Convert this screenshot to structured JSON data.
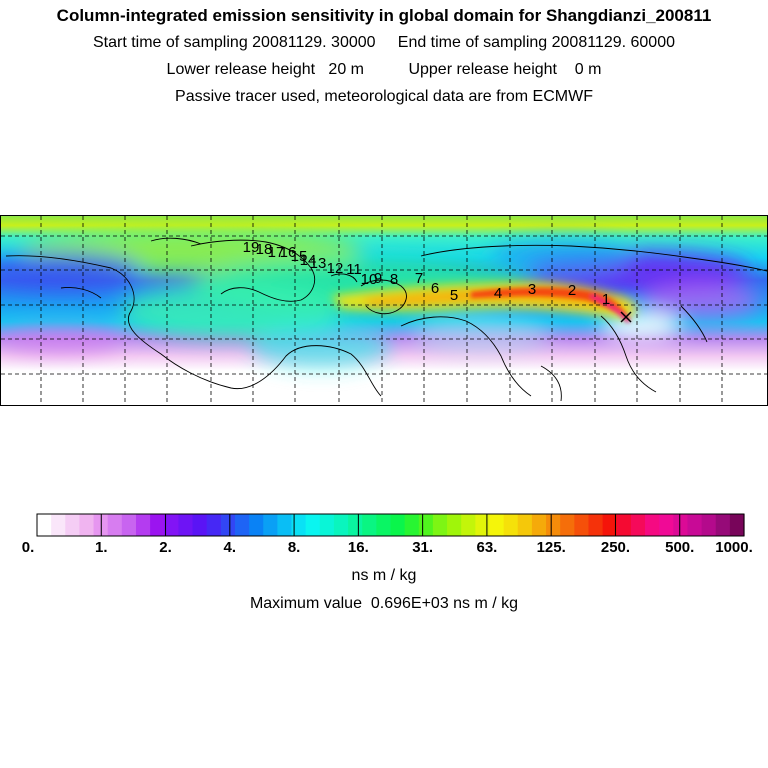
{
  "header": {
    "title": "Column-integrated emission sensitivity in global domain for Shangdianzi_200811",
    "sampling_line": "Start time of sampling 20081129. 30000     End time of sampling 20081129. 60000",
    "release_line": "Lower release height   20 m          Upper release height    0 m",
    "tracer_line": "Passive tracer used, meteorological data are from ECMWF"
  },
  "map": {
    "day_labels": [
      "1",
      "2",
      "3",
      "4",
      "5",
      "6",
      "7",
      "8",
      "9",
      "10",
      "11",
      "12",
      "13",
      "14",
      "15",
      "16",
      "17",
      "18",
      "19"
    ],
    "station_marker": "x-icon"
  },
  "colorbar": {
    "colors": [
      "#ffffff",
      "#fae6fa",
      "#f5cdf5",
      "#f0b4f0",
      "#e696f0",
      "#d77df0",
      "#c864f0",
      "#b43cf0",
      "#9b14f0",
      "#8214f5",
      "#6e14f5",
      "#5a14f5",
      "#4628f5",
      "#3246f5",
      "#1e64f5",
      "#0a82f5",
      "#0aa0f5",
      "#0abef5",
      "#0ae1f5",
      "#0af5f0",
      "#0af5d7",
      "#0af5be",
      "#0af5a0",
      "#0af582",
      "#0af564",
      "#0af54b",
      "#28f532",
      "#50f51e",
      "#7df514",
      "#a0f50a",
      "#c3f50a",
      "#e1f50a",
      "#f5f50a",
      "#f5e10a",
      "#f5c80a",
      "#f5aa0a",
      "#f58c0a",
      "#f56e0a",
      "#f5500a",
      "#f5320a",
      "#f5140a",
      "#f50a32",
      "#f50a5a",
      "#f50a82",
      "#f00a96",
      "#dc0a96",
      "#c80a96",
      "#b40a8c",
      "#960a78",
      "#78055a"
    ],
    "tick_labels": [
      "0.",
      "1.",
      "2.",
      "4.",
      "8.",
      "16.",
      "31.",
      "63.",
      "125.",
      "250.",
      "500.",
      "1000."
    ],
    "unit": "ns m / kg"
  },
  "footer": {
    "max_value_text": "Maximum value  0.696E+03 ns m / kg"
  }
}
